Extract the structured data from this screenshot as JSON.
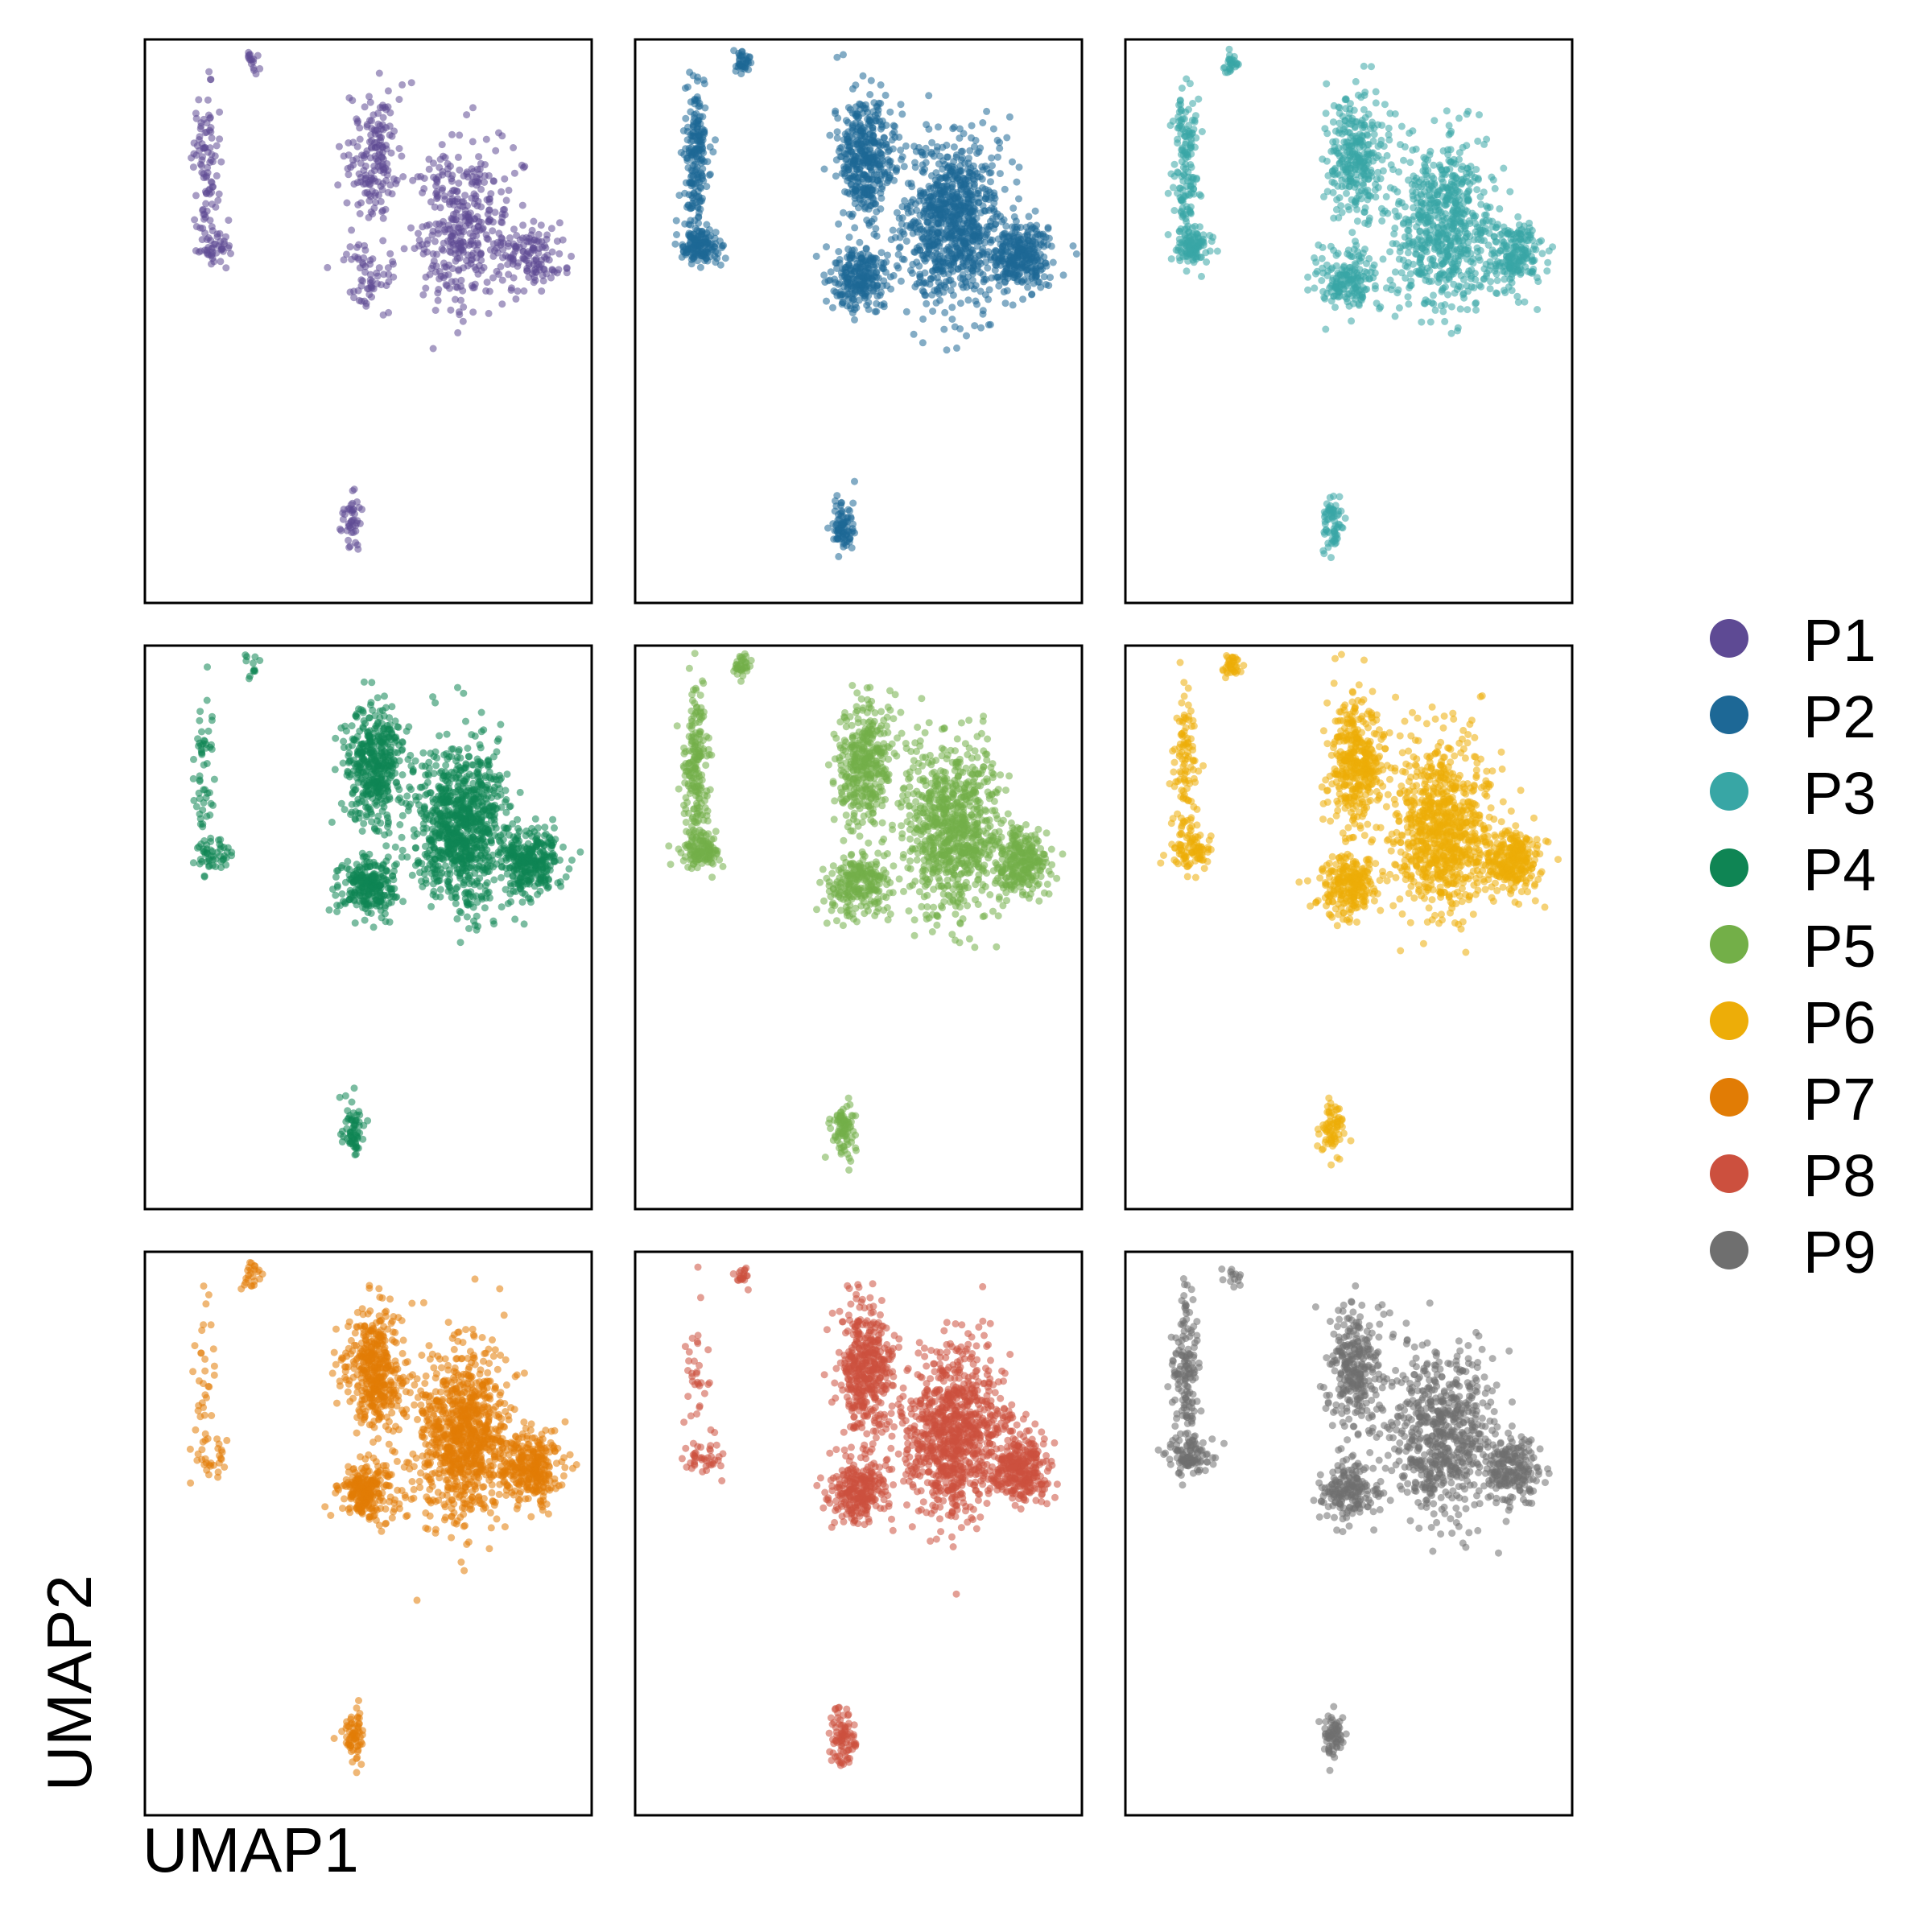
{
  "chart_data": {
    "type": "scatter",
    "layout": "3x3 small multiples",
    "xlabel": "UMAP1",
    "ylabel": "UMAP2",
    "xlim": [
      -10,
      10
    ],
    "ylim": [
      -10,
      10
    ],
    "axis_ticks": false,
    "grid": false,
    "legend_placement": "right",
    "series": [
      {
        "name": "P1",
        "color": "#5E4A94",
        "density": 0.4,
        "cluster_weights": [
          1.0,
          0.8,
          1.0,
          1.0,
          0.6,
          1.0,
          1.0,
          1.0
        ]
      },
      {
        "name": "P2",
        "color": "#1D6896",
        "density": 0.95,
        "cluster_weights": [
          1.0,
          1.0,
          1.0,
          1.0,
          1.0,
          1.0,
          0.8,
          1.0
        ]
      },
      {
        "name": "P3",
        "color": "#38A6A5",
        "density": 0.7,
        "cluster_weights": [
          1.0,
          1.0,
          1.0,
          1.0,
          1.0,
          1.0,
          0.9,
          1.0
        ]
      },
      {
        "name": "P4",
        "color": "#0F8554",
        "density": 1.0,
        "cluster_weights": [
          0.25,
          0.35,
          1.0,
          1.0,
          1.0,
          1.0,
          0.6,
          0.3
        ]
      },
      {
        "name": "P5",
        "color": "#73AF48",
        "density": 0.9,
        "cluster_weights": [
          1.0,
          1.0,
          1.0,
          1.0,
          1.0,
          1.0,
          0.9,
          1.0
        ]
      },
      {
        "name": "P6",
        "color": "#EDAD08",
        "density": 0.95,
        "cluster_weights": [
          0.55,
          0.6,
          1.0,
          1.0,
          1.0,
          1.0,
          0.7,
          1.0
        ]
      },
      {
        "name": "P7",
        "color": "#E17C05",
        "density": 1.0,
        "cluster_weights": [
          0.15,
          0.2,
          1.0,
          1.0,
          1.0,
          1.0,
          0.6,
          0.6
        ]
      },
      {
        "name": "P8",
        "color": "#CC503E",
        "density": 1.0,
        "cluster_weights": [
          0.15,
          0.3,
          1.0,
          1.0,
          1.0,
          1.0,
          0.8,
          0.5
        ]
      },
      {
        "name": "P9",
        "color": "#6F6F6F",
        "density": 0.7,
        "cluster_weights": [
          1.0,
          1.0,
          1.0,
          1.0,
          1.0,
          1.0,
          0.9,
          0.5
        ]
      }
    ],
    "clusters": [
      {
        "id": "left-arm",
        "center": [
          -7.3,
          5.6
        ],
        "spread": [
          0.5,
          2.6
        ],
        "n": 220
      },
      {
        "id": "left-bottom-blob",
        "center": [
          -7.0,
          2.7
        ],
        "spread": [
          0.8,
          0.6
        ],
        "n": 140
      },
      {
        "id": "upper-middle-lobe",
        "center": [
          0.3,
          5.8
        ],
        "spread": [
          1.1,
          2.0
        ],
        "n": 420
      },
      {
        "id": "right-main-mass",
        "center": [
          4.2,
          3.5
        ],
        "spread": [
          2.0,
          2.7
        ],
        "n": 900
      },
      {
        "id": "lower-left-wing",
        "center": [
          0.0,
          1.5
        ],
        "spread": [
          1.2,
          1.0
        ],
        "n": 260
      },
      {
        "id": "right-wing",
        "center": [
          7.3,
          2.3
        ],
        "spread": [
          1.2,
          1.1
        ],
        "n": 300
      },
      {
        "id": "bottom-small-cluster",
        "center": [
          -0.7,
          -7.2
        ],
        "spread": [
          0.45,
          0.9
        ],
        "n": 110
      },
      {
        "id": "top-left-tip",
        "center": [
          -5.2,
          9.2
        ],
        "spread": [
          0.35,
          0.4
        ],
        "n": 40
      }
    ]
  }
}
